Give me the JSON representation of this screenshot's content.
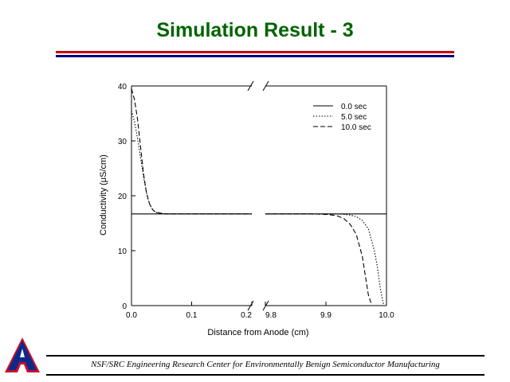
{
  "slide": {
    "title": "Simulation Result - 3",
    "title_color": "#006400",
    "rule_colors": [
      "#cc0000",
      "#000080"
    ],
    "logo_letter": "A",
    "logo_colors": {
      "fill": "#0b2a8a",
      "outline": "#c8102e"
    },
    "footer": "NSF/SRC Engineering Research Center for Environmentally Benign Semiconductor Manufacturing"
  },
  "chart_data": {
    "type": "line",
    "xlabel": "Distance from Anode (cm)",
    "ylabel": "Conductivity (μS/cm)",
    "ylim": [
      0,
      40
    ],
    "yticks": [
      0,
      10,
      20,
      30,
      40
    ],
    "x_broken_axis": true,
    "x_segments": [
      {
        "range": [
          0.0,
          0.2
        ],
        "ticks": [
          0.0,
          0.1,
          0.2
        ],
        "tick_labels": [
          "0.0",
          "0.1",
          "0.2"
        ]
      },
      {
        "range": [
          9.8,
          10.0
        ],
        "ticks": [
          9.8,
          9.9,
          10.0
        ],
        "tick_labels": [
          "9.8",
          "9.9",
          "10.0"
        ]
      }
    ],
    "legend_position": "top-right",
    "grid": false,
    "series": [
      {
        "name": "0.0 sec",
        "style": "solid",
        "x": [
          0.0,
          0.2,
          9.8,
          10.0
        ],
        "y": [
          16.7,
          16.7,
          16.7,
          16.7
        ]
      },
      {
        "name": "5.0 sec",
        "style": "dotted",
        "x": [
          0.0,
          0.005,
          0.01,
          0.015,
          0.02,
          0.025,
          0.03,
          0.035,
          0.04,
          0.05,
          0.06,
          0.08,
          0.2,
          9.8,
          9.9,
          9.92,
          9.93,
          9.94,
          9.95,
          9.96,
          9.97,
          9.98,
          9.985,
          9.99,
          9.995
        ],
        "y": [
          35.5,
          33.5,
          30.5,
          27.0,
          23.5,
          20.5,
          18.5,
          17.5,
          17.0,
          16.8,
          16.7,
          16.7,
          16.7,
          16.7,
          16.7,
          16.7,
          16.6,
          16.5,
          16.2,
          15.5,
          14.0,
          10.0,
          7.0,
          3.0,
          0.3
        ]
      },
      {
        "name": "10.0 sec",
        "style": "dashed",
        "x": [
          0.0,
          0.005,
          0.01,
          0.015,
          0.02,
          0.025,
          0.03,
          0.035,
          0.04,
          0.05,
          0.06,
          0.08,
          0.2,
          9.8,
          9.88,
          9.9,
          9.91,
          9.92,
          9.93,
          9.94,
          9.95,
          9.96,
          9.965,
          9.97,
          9.975
        ],
        "y": [
          39.5,
          37.5,
          34.0,
          29.0,
          24.0,
          20.5,
          18.5,
          17.5,
          17.0,
          16.8,
          16.7,
          16.7,
          16.7,
          16.7,
          16.7,
          16.6,
          16.5,
          16.3,
          15.8,
          14.8,
          13.0,
          9.0,
          5.5,
          2.0,
          0.3
        ]
      }
    ]
  }
}
